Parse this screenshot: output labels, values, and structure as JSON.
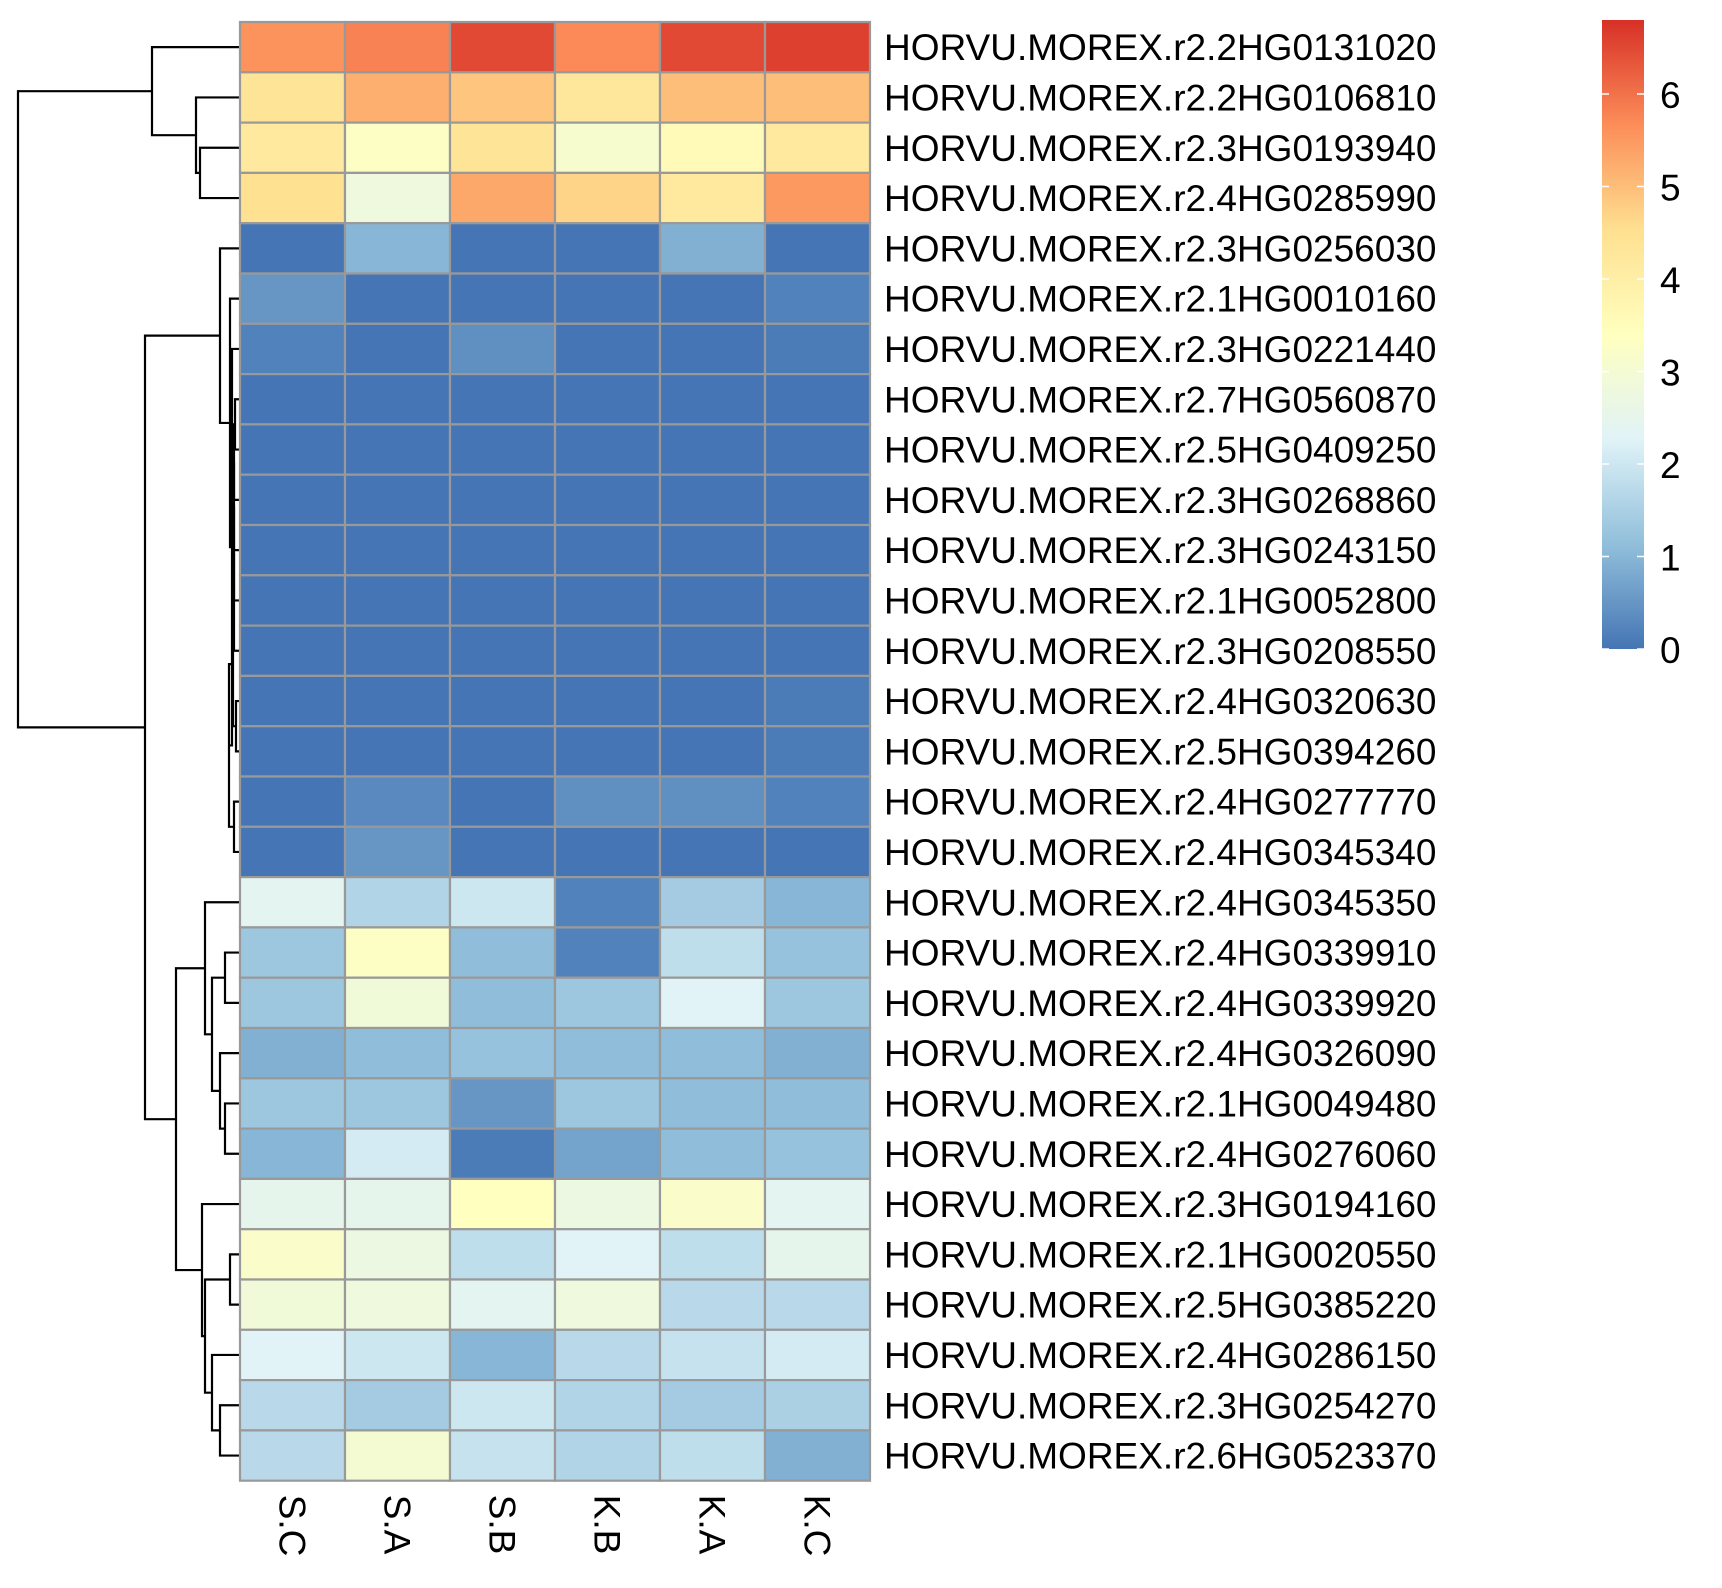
{
  "chart_data": {
    "type": "heatmap",
    "title": "",
    "xlabel": "",
    "ylabel": "",
    "columns": [
      "S.C",
      "S.A",
      "S.B",
      "K.B",
      "K.A",
      "K.C"
    ],
    "rows": [
      "HORVU.MOREX.r2.2HG0131020",
      "HORVU.MOREX.r2.2HG0106810",
      "HORVU.MOREX.r2.3HG0193940",
      "HORVU.MOREX.r2.4HG0285990",
      "HORVU.MOREX.r2.3HG0256030",
      "HORVU.MOREX.r2.1HG0010160",
      "HORVU.MOREX.r2.3HG0221440",
      "HORVU.MOREX.r2.7HG0560870",
      "HORVU.MOREX.r2.5HG0409250",
      "HORVU.MOREX.r2.3HG0268860",
      "HORVU.MOREX.r2.3HG0243150",
      "HORVU.MOREX.r2.1HG0052800",
      "HORVU.MOREX.r2.3HG0208550",
      "HORVU.MOREX.r2.4HG0320630",
      "HORVU.MOREX.r2.5HG0394260",
      "HORVU.MOREX.r2.4HG0277770",
      "HORVU.MOREX.r2.4HG0345340",
      "HORVU.MOREX.r2.4HG0345350",
      "HORVU.MOREX.r2.4HG0339910",
      "HORVU.MOREX.r2.4HG0339920",
      "HORVU.MOREX.r2.4HG0326090",
      "HORVU.MOREX.r2.1HG0049480",
      "HORVU.MOREX.r2.4HG0276060",
      "HORVU.MOREX.r2.3HG0194160",
      "HORVU.MOREX.r2.1HG0020550",
      "HORVU.MOREX.r2.5HG0385220",
      "HORVU.MOREX.r2.4HG0286150",
      "HORVU.MOREX.r2.3HG0254270",
      "HORVU.MOREX.r2.6HG0523370"
    ],
    "values": [
      [
        5.6,
        5.8,
        6.5,
        5.7,
        6.5,
        6.6
      ],
      [
        4.4,
        5.2,
        4.9,
        4.3,
        5.0,
        5.0
      ],
      [
        4.2,
        3.3,
        4.4,
        3.1,
        3.6,
        4.2
      ],
      [
        4.5,
        2.8,
        5.3,
        4.7,
        4.2,
        5.5
      ],
      [
        0.0,
        1.0,
        0.0,
        0.0,
        0.9,
        0.0
      ],
      [
        0.5,
        0.0,
        0.0,
        0.0,
        0.0,
        0.2
      ],
      [
        0.2,
        0.0,
        0.4,
        0.0,
        0.0,
        0.1
      ],
      [
        0.0,
        0.0,
        0.0,
        0.0,
        0.0,
        0.0
      ],
      [
        0.0,
        0.0,
        0.0,
        0.0,
        0.0,
        0.0
      ],
      [
        0.0,
        0.0,
        0.0,
        0.0,
        0.0,
        0.0
      ],
      [
        0.0,
        0.0,
        0.0,
        0.0,
        0.0,
        0.0
      ],
      [
        0.0,
        0.0,
        0.0,
        0.0,
        0.0,
        0.0
      ],
      [
        0.0,
        0.0,
        0.0,
        0.0,
        0.0,
        0.0
      ],
      [
        0.0,
        0.0,
        0.0,
        0.0,
        0.0,
        0.1
      ],
      [
        0.0,
        0.0,
        0.0,
        0.0,
        0.0,
        0.1
      ],
      [
        0.0,
        0.3,
        0.0,
        0.4,
        0.4,
        0.2
      ],
      [
        0.0,
        0.5,
        0.0,
        0.0,
        0.0,
        0.0
      ],
      [
        2.4,
        1.6,
        2.0,
        0.2,
        1.4,
        1.0
      ],
      [
        1.3,
        3.3,
        1.1,
        0.2,
        1.8,
        1.2
      ],
      [
        1.3,
        2.9,
        1.1,
        1.3,
        2.3,
        1.3
      ],
      [
        0.9,
        1.1,
        1.2,
        1.1,
        1.1,
        0.9
      ],
      [
        1.3,
        1.3,
        0.5,
        1.3,
        1.1,
        1.1
      ],
      [
        1.0,
        2.1,
        0.1,
        0.7,
        1.1,
        1.2
      ],
      [
        2.5,
        2.5,
        3.4,
        2.7,
        3.2,
        2.4
      ],
      [
        3.2,
        2.7,
        1.8,
        2.3,
        1.8,
        2.5
      ],
      [
        2.9,
        2.8,
        2.4,
        2.8,
        1.7,
        1.7
      ],
      [
        2.3,
        2.0,
        1.0,
        1.7,
        1.9,
        2.1
      ],
      [
        1.7,
        1.4,
        2.0,
        1.6,
        1.4,
        1.5
      ],
      [
        1.7,
        3.0,
        1.9,
        1.6,
        1.8,
        0.9
      ]
    ],
    "color_scale": {
      "min": 0,
      "max": 6.8,
      "ticks": [
        0,
        1,
        2,
        3,
        4,
        5,
        6
      ],
      "colors": [
        "#4575b4",
        "#91bfdb",
        "#e0f3f8",
        "#ffffbf",
        "#fee090",
        "#fc8d59",
        "#d73027"
      ]
    },
    "cell_border_color": "#999999",
    "legend_position": "right"
  }
}
